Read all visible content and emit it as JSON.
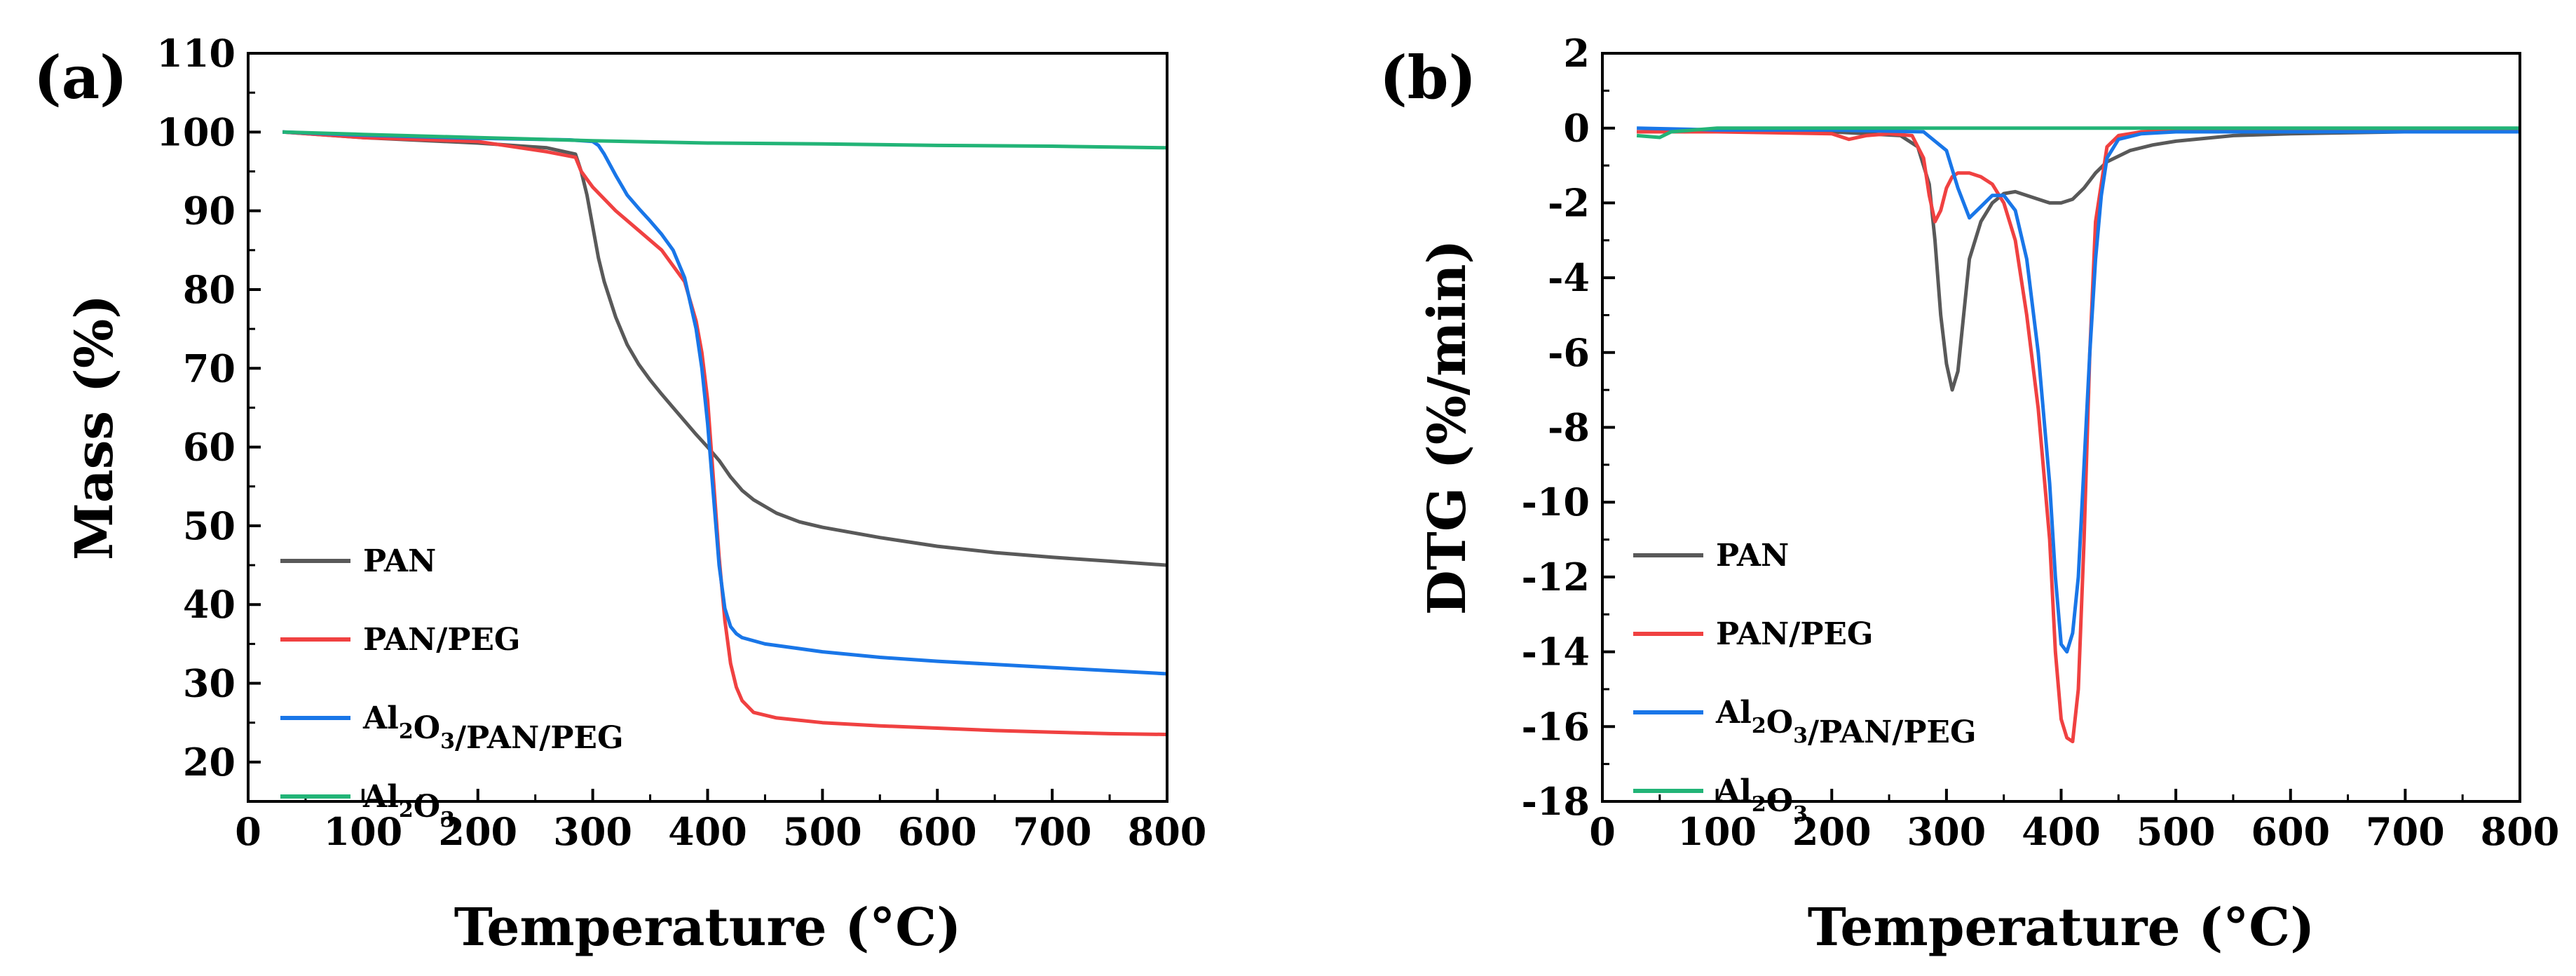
{
  "chart_data": [
    {
      "type": "line",
      "panel_label": "(a)",
      "xlabel": "Temperature (°C)",
      "ylabel": "Mass (%)",
      "xlim": [
        0,
        800
      ],
      "ylim": [
        15,
        110
      ],
      "xticks": [
        0,
        100,
        200,
        300,
        400,
        500,
        600,
        700,
        800
      ],
      "yticks": [
        20,
        30,
        40,
        50,
        60,
        70,
        80,
        90,
        100,
        110
      ],
      "legend_position": "lower-left",
      "series": [
        {
          "name": "PAN",
          "legend_parts": [
            [
              "PAN",
              ""
            ]
          ],
          "color": "#595959",
          "x": [
            30,
            100,
            200,
            260,
            285,
            290,
            295,
            300,
            305,
            310,
            320,
            330,
            340,
            350,
            360,
            370,
            380,
            390,
            400,
            410,
            420,
            430,
            440,
            460,
            480,
            500,
            550,
            600,
            650,
            700,
            750,
            800
          ],
          "y": [
            100,
            99.3,
            98.6,
            98,
            97.2,
            95,
            92,
            88,
            84,
            81,
            76.5,
            73,
            70.5,
            68.5,
            66.7,
            65,
            63.3,
            61.6,
            60,
            58.3,
            56.2,
            54.5,
            53.3,
            51.6,
            50.5,
            49.8,
            48.5,
            47.4,
            46.6,
            46,
            45.5,
            45
          ]
        },
        {
          "name": "PAN/PEG",
          "legend_parts": [
            [
              "PAN/PEG",
              ""
            ]
          ],
          "color": "#f04141",
          "x": [
            30,
            100,
            200,
            260,
            285,
            290,
            300,
            320,
            340,
            360,
            380,
            390,
            395,
            400,
            405,
            410,
            415,
            420,
            425,
            430,
            440,
            460,
            500,
            550,
            600,
            650,
            700,
            750,
            800
          ],
          "y": [
            100,
            99.3,
            98.8,
            97.5,
            96.8,
            95,
            93,
            90,
            87.5,
            85,
            81,
            76,
            72,
            66,
            56,
            46,
            38,
            32.5,
            29.5,
            27.8,
            26.3,
            25.6,
            25,
            24.6,
            24.3,
            24,
            23.8,
            23.6,
            23.5
          ]
        },
        {
          "name": "Al2O3/PAN/PEG",
          "legend_parts": [
            [
              "Al",
              "2"
            ],
            [
              "O",
              "3"
            ],
            [
              "/PAN/PEG",
              ""
            ]
          ],
          "color": "#1976e8",
          "x": [
            30,
            100,
            200,
            280,
            300,
            305,
            310,
            320,
            330,
            340,
            350,
            360,
            370,
            380,
            390,
            395,
            400,
            405,
            410,
            415,
            420,
            425,
            430,
            450,
            500,
            550,
            600,
            700,
            800
          ],
          "y": [
            100,
            99.6,
            99.2,
            99,
            98.8,
            98.3,
            97.2,
            94.5,
            92,
            90.3,
            88.7,
            87,
            85,
            81.5,
            75,
            70,
            63,
            54,
            45,
            39.5,
            37.2,
            36.3,
            35.8,
            35,
            34,
            33.3,
            32.8,
            32,
            31.2
          ]
        },
        {
          "name": "Al2O3",
          "legend_parts": [
            [
              "Al",
              "2"
            ],
            [
              "O",
              "3"
            ]
          ],
          "color": "#22b477",
          "x": [
            30,
            100,
            200,
            300,
            400,
            500,
            600,
            700,
            800
          ],
          "y": [
            100,
            99.7,
            99.3,
            98.9,
            98.6,
            98.5,
            98.3,
            98.2,
            98
          ]
        }
      ]
    },
    {
      "type": "line",
      "panel_label": "(b)",
      "xlabel": "Temperature (°C)",
      "ylabel": "DTG (%/min)",
      "xlim": [
        0,
        800
      ],
      "ylim": [
        -18,
        2
      ],
      "xticks": [
        0,
        100,
        200,
        300,
        400,
        500,
        600,
        700,
        800
      ],
      "yticks": [
        2,
        0,
        -2,
        -4,
        -6,
        -8,
        -10,
        -12,
        -14,
        -16,
        -18
      ],
      "legend_position": "lower-left",
      "series": [
        {
          "name": "PAN",
          "legend_parts": [
            [
              "PAN",
              ""
            ]
          ],
          "color": "#595959",
          "x": [
            30,
            100,
            200,
            260,
            275,
            285,
            290,
            295,
            300,
            305,
            310,
            315,
            320,
            330,
            340,
            350,
            360,
            370,
            380,
            390,
            400,
            410,
            420,
            430,
            440,
            460,
            480,
            500,
            550,
            600,
            700,
            800
          ],
          "y": [
            -0.1,
            -0.1,
            -0.1,
            -0.2,
            -0.5,
            -1.5,
            -3,
            -5,
            -6.3,
            -7,
            -6.5,
            -5,
            -3.5,
            -2.5,
            -2,
            -1.75,
            -1.7,
            -1.8,
            -1.9,
            -2,
            -2,
            -1.9,
            -1.6,
            -1.2,
            -0.9,
            -0.6,
            -0.45,
            -0.35,
            -0.2,
            -0.15,
            -0.1,
            -0.1
          ]
        },
        {
          "name": "PAN/PEG",
          "legend_parts": [
            [
              "PAN/PEG",
              ""
            ]
          ],
          "color": "#f04141",
          "x": [
            30,
            100,
            200,
            215,
            230,
            250,
            270,
            280,
            285,
            290,
            295,
            300,
            305,
            310,
            320,
            330,
            340,
            350,
            360,
            370,
            380,
            390,
            395,
            400,
            405,
            410,
            415,
            420,
            425,
            430,
            440,
            450,
            470,
            500,
            600,
            700,
            800
          ],
          "y": [
            -0.1,
            -0.1,
            -0.15,
            -0.3,
            -0.2,
            -0.15,
            -0.2,
            -0.8,
            -1.8,
            -2.5,
            -2.2,
            -1.6,
            -1.3,
            -1.2,
            -1.2,
            -1.3,
            -1.5,
            -2,
            -3,
            -5,
            -7.5,
            -11,
            -14,
            -15.8,
            -16.3,
            -16.4,
            -15,
            -11,
            -6,
            -2.5,
            -0.5,
            -0.2,
            -0.1,
            -0.05,
            -0.05,
            -0.05,
            -0.05
          ]
        },
        {
          "name": "Al2O3/PAN/PEG",
          "legend_parts": [
            [
              "Al",
              "2"
            ],
            [
              "O",
              "3"
            ],
            [
              "/PAN/PEG",
              ""
            ]
          ],
          "color": "#1976e8",
          "x": [
            30,
            100,
            200,
            280,
            300,
            310,
            320,
            330,
            340,
            350,
            360,
            370,
            380,
            390,
            395,
            400,
            405,
            410,
            415,
            420,
            425,
            430,
            435,
            440,
            450,
            470,
            500,
            600,
            700,
            800
          ],
          "y": [
            0,
            -0.05,
            -0.05,
            -0.1,
            -0.6,
            -1.6,
            -2.4,
            -2.1,
            -1.8,
            -1.8,
            -2.2,
            -3.5,
            -6,
            -9.5,
            -12,
            -13.8,
            -14,
            -13.5,
            -12,
            -9,
            -6,
            -3.5,
            -1.8,
            -0.8,
            -0.3,
            -0.15,
            -0.1,
            -0.1,
            -0.1,
            -0.1
          ]
        },
        {
          "name": "Al2O3",
          "legend_parts": [
            [
              "Al",
              "2"
            ],
            [
              "O",
              "3"
            ]
          ],
          "color": "#22b477",
          "x": [
            30,
            50,
            60,
            100,
            200,
            300,
            400,
            500,
            600,
            700,
            800
          ],
          "y": [
            -0.2,
            -0.25,
            -0.1,
            0,
            0,
            0,
            0,
            0,
            0,
            0,
            0
          ]
        }
      ]
    }
  ]
}
